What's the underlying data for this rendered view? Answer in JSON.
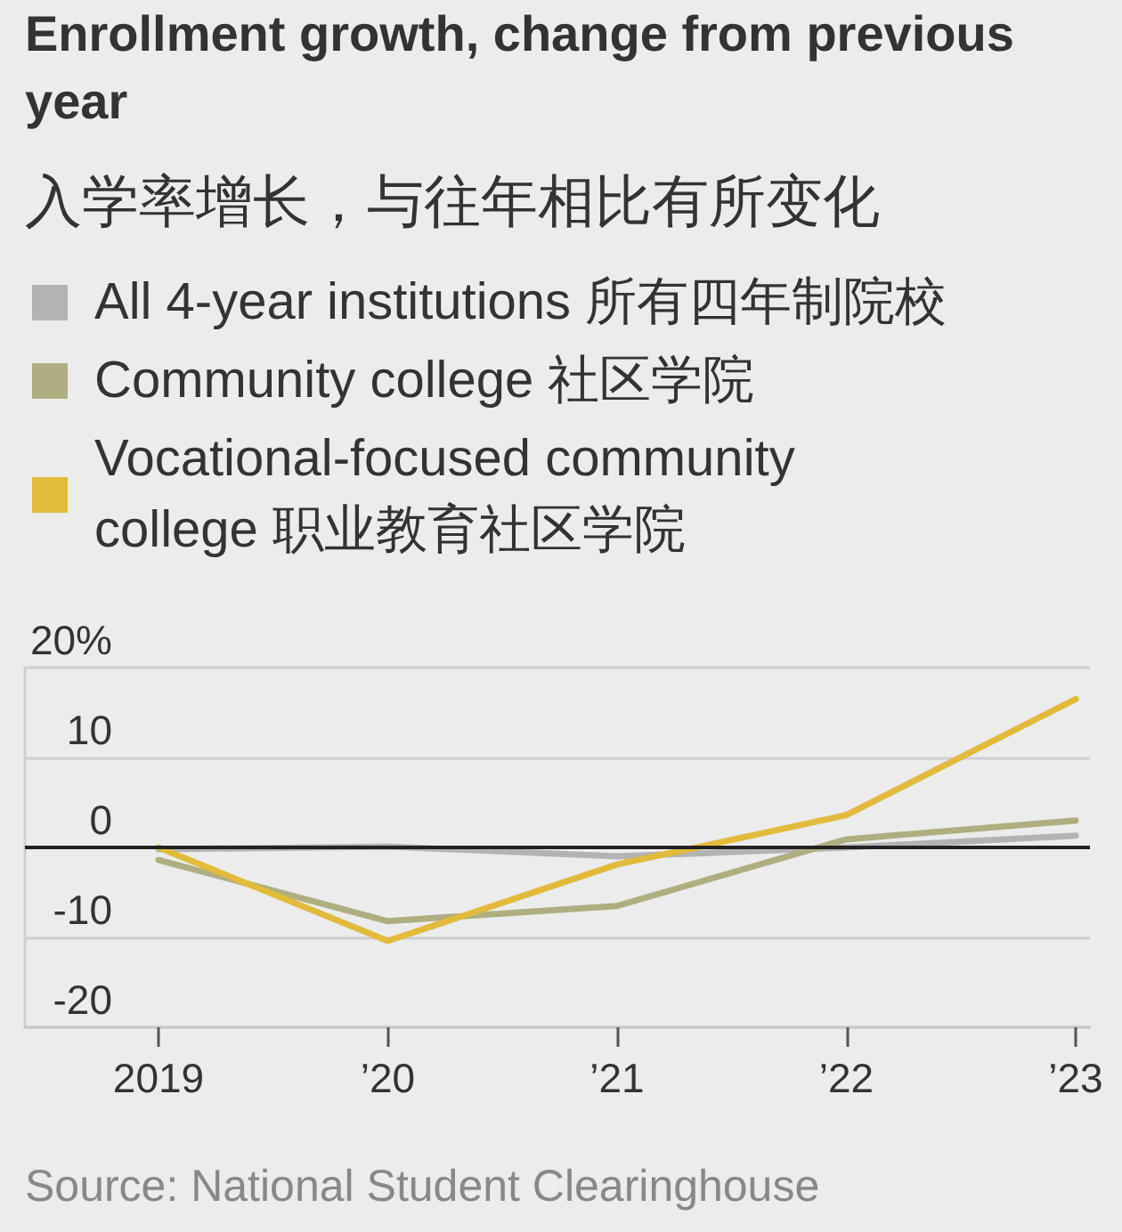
{
  "chart_data": {
    "type": "line",
    "title": "Enrollment growth, change from previous year",
    "subtitle": "入学率增长，与往年相比有所变化",
    "categories": [
      "2019",
      "’20",
      "’21",
      "’22",
      "’23"
    ],
    "series": [
      {
        "name": "All 4-year institutions 所有四年制院校",
        "color": "#b3b3b3",
        "values": [
          -0.2,
          0.1,
          -1.0,
          0.0,
          1.3
        ]
      },
      {
        "name": "Community college 社区学院",
        "color": "#aeae82",
        "values": [
          -1.4,
          -8.2,
          -6.5,
          0.9,
          3.0
        ]
      },
      {
        "name": "Vocational-focused community college 职业教育社区学院",
        "color": "#e0bb3c",
        "values": [
          0.0,
          -10.4,
          -1.9,
          3.6,
          16.5
        ]
      }
    ],
    "ylim": [
      -20,
      20
    ],
    "yticks": [
      -20,
      -10,
      0,
      10,
      {
        "value": 20,
        "label": "20%"
      }
    ],
    "grid": "y",
    "legend": "top left",
    "marker": "none",
    "line_style": "solid",
    "ref_lines": [
      {
        "axis": "y",
        "value": 0,
        "color": "#222222"
      }
    ],
    "annotations": [
      "Source: National Student Clearinghouse"
    ]
  }
}
